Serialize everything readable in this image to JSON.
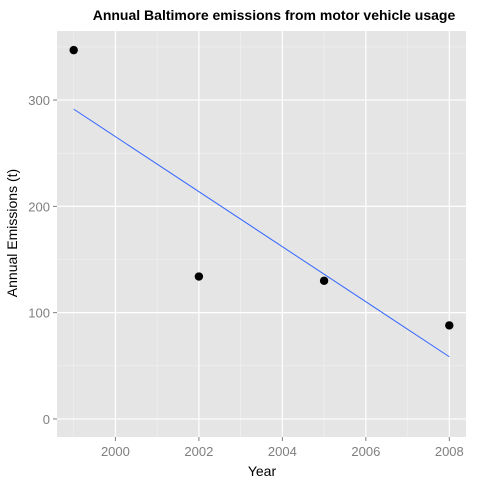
{
  "chart_data": {
    "type": "scatter",
    "title": "Annual Baltimore emissions from motor vehicle usage",
    "xlabel": "Year",
    "ylabel": "Annual Emissions (t)",
    "xlim": [
      1998.6,
      2008.4
    ],
    "ylim": [
      -17,
      365
    ],
    "x_ticks": [
      2000,
      2002,
      2004,
      2006,
      2008
    ],
    "x_tick_labels": [
      "2000",
      "2002",
      "2004",
      "2006",
      "2008"
    ],
    "y_ticks": [
      0,
      100,
      200,
      300
    ],
    "y_tick_labels": [
      "0",
      "100",
      "200",
      "300"
    ],
    "grid": true,
    "legend": "none",
    "series": [
      {
        "type": "scatter",
        "x": [
          1999,
          2002,
          2005,
          2008
        ],
        "y": [
          347,
          134,
          130,
          88
        ]
      }
    ],
    "trend_line": {
      "method": "linear fit",
      "x": [
        1999,
        2008
      ],
      "y": [
        291.5,
        58.5
      ]
    },
    "colors": {
      "panel_background": "#e5e5e5",
      "grid_major": "#ffffff",
      "grid_minor": "#f2f2f2",
      "points": "#000000",
      "trend_line": "#3366ff",
      "tick_text": "#7f7f7f",
      "tick_marks": "#7f7f7f"
    }
  }
}
